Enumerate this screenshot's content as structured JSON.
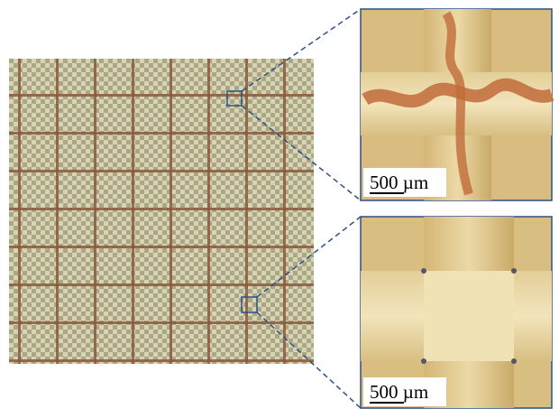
{
  "panels": [
    {
      "scale_label": "500 µm"
    },
    {
      "scale_label": "500 µm"
    }
  ]
}
